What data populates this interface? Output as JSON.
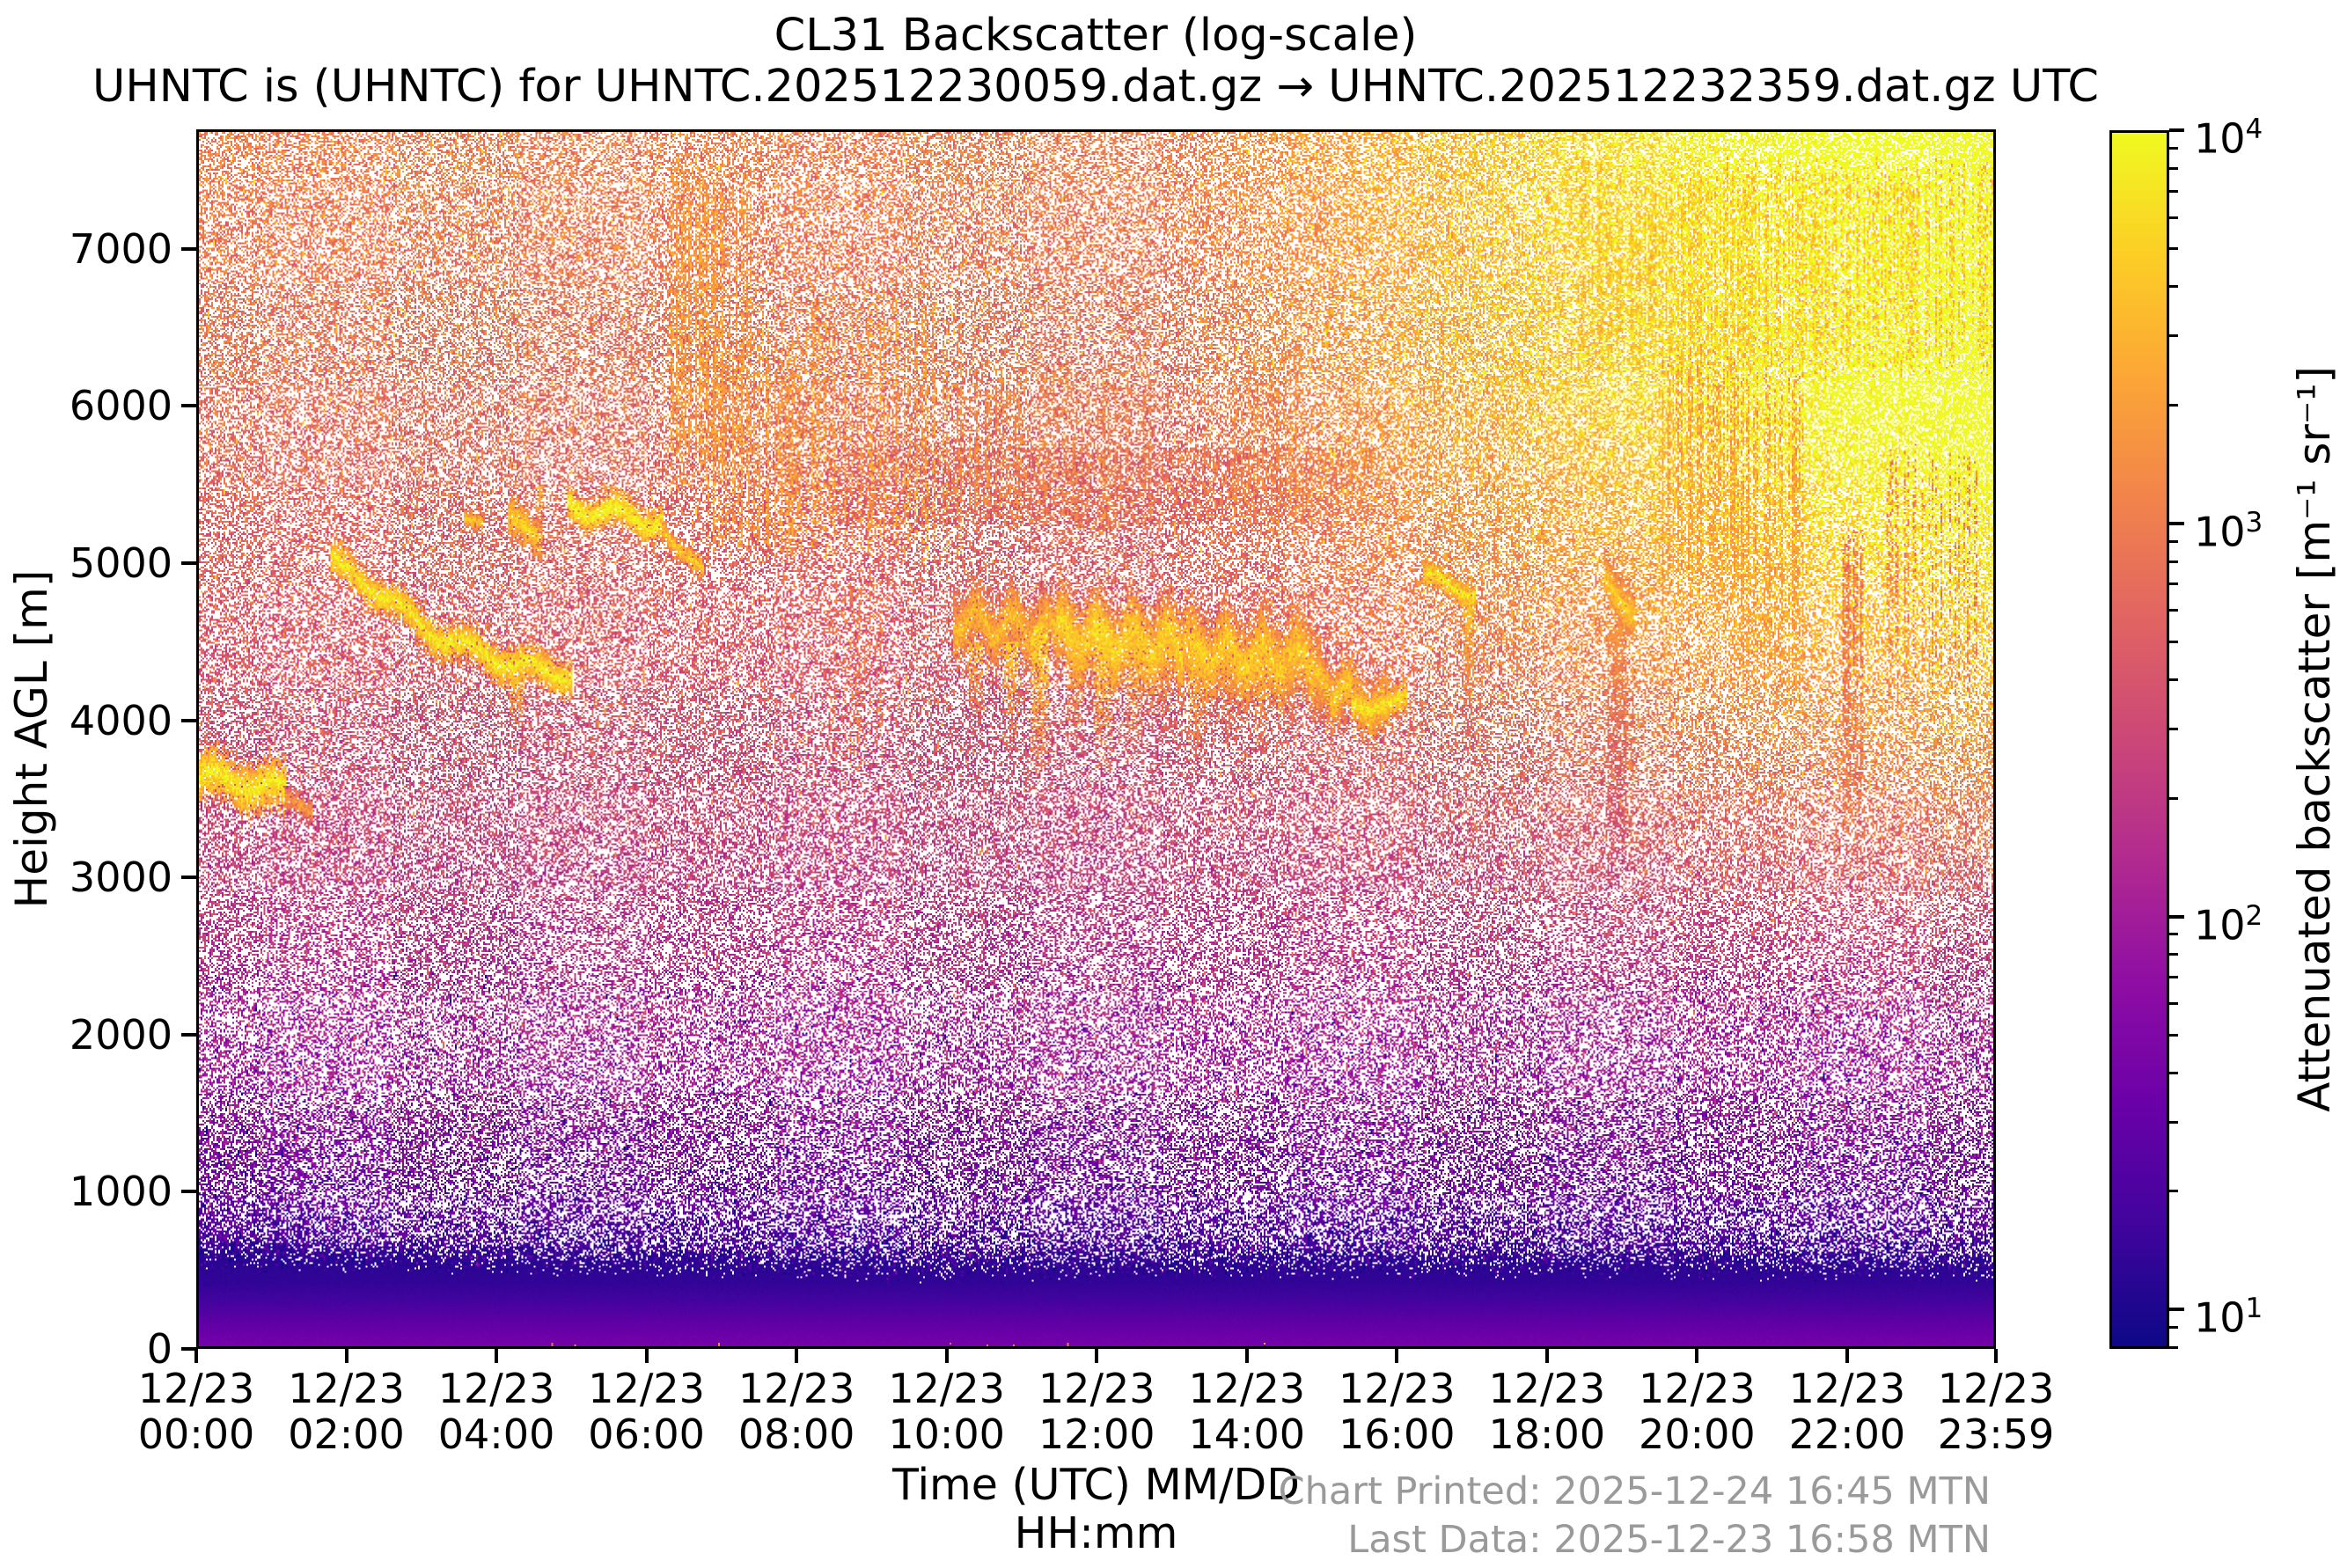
{
  "title": "CL31 Backscatter (log-scale)",
  "subtitle": "UHNTC is (UHNTC) for UHNTC.202512230059.dat.gz → UHNTC.202512232359.dat.gz UTC",
  "footer": {
    "printed": "Chart Printed: 2025-12-24 16:45 MTN",
    "last_data": "Last Data: 2025-12-23 16:58 MTN"
  },
  "axes": {
    "x": {
      "label_line1": "Time (UTC) MM/DD",
      "label_line2": "HH:mm",
      "max_hour": 23.9833,
      "ticks": [
        {
          "date": "12/23",
          "time": "00:00",
          "hour": 0
        },
        {
          "date": "12/23",
          "time": "02:00",
          "hour": 2
        },
        {
          "date": "12/23",
          "time": "04:00",
          "hour": 4
        },
        {
          "date": "12/23",
          "time": "06:00",
          "hour": 6
        },
        {
          "date": "12/23",
          "time": "08:00",
          "hour": 8
        },
        {
          "date": "12/23",
          "time": "10:00",
          "hour": 10
        },
        {
          "date": "12/23",
          "time": "12:00",
          "hour": 12
        },
        {
          "date": "12/23",
          "time": "14:00",
          "hour": 14
        },
        {
          "date": "12/23",
          "time": "16:00",
          "hour": 16
        },
        {
          "date": "12/23",
          "time": "18:00",
          "hour": 18
        },
        {
          "date": "12/23",
          "time": "20:00",
          "hour": 20
        },
        {
          "date": "12/23",
          "time": "22:00",
          "hour": 22
        },
        {
          "date": "12/23",
          "time": "23:59",
          "hour": 23.9833
        }
      ]
    },
    "y": {
      "label": "Height AGL [m]",
      "max": 7760,
      "ticks": [
        0,
        1000,
        2000,
        3000,
        4000,
        5000,
        6000,
        7000
      ]
    }
  },
  "colorbar": {
    "label": "Attenuated backscatter [m⁻¹ sr⁻¹]",
    "log_min": 0.9,
    "log_max": 4,
    "ticks": [
      {
        "label": "10",
        "exp": "4",
        "log": 4
      },
      {
        "label": "10",
        "exp": "3",
        "log": 3
      },
      {
        "label": "10",
        "exp": "2",
        "log": 2
      },
      {
        "label": "10",
        "exp": "1",
        "log": 1
      }
    ],
    "colormap": {
      "name": "plasma",
      "stops": [
        [
          0,
          "#0d0887"
        ],
        [
          0.1,
          "#41049d"
        ],
        [
          0.2,
          "#6a00a8"
        ],
        [
          0.3,
          "#8f0da4"
        ],
        [
          0.4,
          "#b12a90"
        ],
        [
          0.5,
          "#cc4778"
        ],
        [
          0.6,
          "#e16462"
        ],
        [
          0.7,
          "#f2844b"
        ],
        [
          0.8,
          "#fca636"
        ],
        [
          0.9,
          "#fcce25"
        ],
        [
          1,
          "#f0f921"
        ]
      ]
    }
  },
  "chart_data": {
    "type": "heatmap",
    "title": "CL31 Backscatter (log-scale)",
    "xlabel": "Time (UTC) MM/DD HH:mm",
    "ylabel": "Height AGL [m]",
    "zlabel": "Attenuated backscatter [m⁻¹ sr⁻¹]",
    "x_range_hours": [
      0,
      23.9833
    ],
    "x_dates": "12/23",
    "y": {
      "range_m": [
        0,
        7760
      ]
    },
    "z_scale": "log10, 10^0.9 to 10^4",
    "colormap": "plasma",
    "surface_layer": {
      "top_start": 450,
      "top_end": 395,
      "wiggle": 20,
      "blend": 220,
      "profile": [
        [
          0,
          0.225
        ],
        [
          60,
          0.21
        ],
        [
          170,
          0.165
        ],
        [
          280,
          0.11
        ],
        [
          400,
          0.072
        ],
        [
          560,
          0.055
        ]
      ]
    },
    "noise_field": {
      "density_base": 0.5,
      "base_curve": [
        [
          450,
          0.07
        ],
        [
          700,
          0.13
        ],
        [
          1000,
          0.22
        ],
        [
          1600,
          0.33
        ],
        [
          2400,
          0.4
        ],
        [
          3200,
          0.48
        ],
        [
          4200,
          0.55
        ],
        [
          5200,
          0.6
        ],
        [
          6200,
          0.64
        ],
        [
          7600,
          0.68
        ]
      ],
      "jitter": 0.22,
      "warm_tail_p": 0.1,
      "warm_tail": 0.2,
      "cold_tail_p": 0.035,
      "cold_tail": 0.28,
      "run_p": 0.42,
      "low_dense_extra": 0.3,
      "low_dense_range": 420,
      "mid_thin": {
        "h": [
          1500,
          2900
        ],
        "dd": -0.05
      },
      "time_boost": {
        "t0": 0.54,
        "tspan": 0.45,
        "h0": 2000,
        "dh": 2500,
        "hmax": 1.6,
        "amount": 0.3,
        "dens_amount": 0.22,
        "dens_h0": 4200,
        "dens_dh": 1600
      },
      "dense_patches": [
        {
          "t": [
            0.35,
            0.66
          ],
          "h": [
            5250,
            5750
          ],
          "dd": 0.16
        },
        {
          "t": [
            0.0,
            0.06
          ],
          "h": [
            600,
            1400
          ],
          "dd": 0.1
        }
      ]
    },
    "cloud_bands": [
      {
        "t": [
          0.0,
          0.048
        ],
        "h": [
          3640,
          3520
        ],
        "th": 380,
        "bright": 0.97,
        "wave": 90
      },
      {
        "t": [
          0.048,
          0.063
        ],
        "h": [
          3500,
          3450
        ],
        "th": 180,
        "bright": 0.8,
        "wave": 40
      },
      {
        "t": [
          0.073,
          0.128
        ],
        "h": [
          5050,
          4560
        ],
        "th": 270,
        "bright": 0.96,
        "wave": 60
      },
      {
        "t": [
          0.128,
          0.207
        ],
        "h": [
          4560,
          4290
        ],
        "th": 280,
        "bright": 0.97,
        "wave": 70
      },
      {
        "t": [
          0.148,
          0.157
        ],
        "h": [
          5280,
          5280
        ],
        "th": 150,
        "bright": 0.88,
        "wave": 30
      },
      {
        "t": [
          0.172,
          0.191
        ],
        "h": [
          5300,
          5150
        ],
        "th": 300,
        "bright": 0.92,
        "wave": 40
      },
      {
        "t": [
          0.205,
          0.258
        ],
        "h": [
          5360,
          5320
        ],
        "th": 250,
        "bright": 0.99,
        "wave": 90
      },
      {
        "t": [
          0.258,
          0.281
        ],
        "h": [
          5230,
          4950
        ],
        "th": 180,
        "bright": 0.9,
        "wave": 50
      },
      {
        "t": [
          0.42,
          0.478
        ],
        "h": [
          4650,
          4580
        ],
        "th": 500,
        "bright": 0.86,
        "ragged": 160
      },
      {
        "t": [
          0.478,
          0.548
        ],
        "h": [
          4560,
          4480
        ],
        "th": 620,
        "bright": 0.92,
        "ragged": 170
      },
      {
        "t": [
          0.548,
          0.625
        ],
        "h": [
          4460,
          4380
        ],
        "th": 620,
        "bright": 0.9,
        "ragged": 170
      },
      {
        "t": [
          0.625,
          0.662
        ],
        "h": [
          4250,
          4060
        ],
        "th": 460,
        "bright": 0.9,
        "ragged": 150
      },
      {
        "t": [
          0.642,
          0.673
        ],
        "h": [
          4110,
          4150
        ],
        "th": 240,
        "bright": 0.96,
        "wave": 50
      },
      {
        "t": [
          0.682,
          0.711
        ],
        "h": [
          4900,
          4800
        ],
        "th": 200,
        "bright": 0.95,
        "wave": 70
      },
      {
        "t": [
          0.783,
          0.8
        ],
        "h": [
          4930,
          4680
        ],
        "th": 380,
        "bright": 0.9,
        "wave": 40
      }
    ],
    "plumes": [
      {
        "t": 0.177,
        "w": 0.0035,
        "h": [
          4290,
          3940
        ],
        "bright": 0.9
      },
      {
        "t": 0.19,
        "w": 0.002,
        "h": [
          5500,
          5060
        ],
        "bright": 0.85
      },
      {
        "t": 0.432,
        "w": 0.004,
        "h": [
          4500,
          3900
        ],
        "bright": 0.85
      },
      {
        "t": 0.452,
        "w": 0.004,
        "h": [
          4500,
          3800
        ],
        "bright": 0.9
      },
      {
        "t": 0.468,
        "w": 0.005,
        "h": [
          4600,
          3660
        ],
        "bright": 0.95
      },
      {
        "t": 0.488,
        "w": 0.004,
        "h": [
          4550,
          3800
        ],
        "bright": 0.88
      },
      {
        "t": 0.503,
        "w": 0.005,
        "h": [
          4600,
          3680
        ],
        "bright": 0.95
      },
      {
        "t": 0.521,
        "w": 0.004,
        "h": [
          4500,
          3800
        ],
        "bright": 0.9
      },
      {
        "t": 0.538,
        "w": 0.004,
        "h": [
          4450,
          3900
        ],
        "bright": 0.85
      },
      {
        "t": 0.556,
        "w": 0.005,
        "h": [
          4500,
          3750
        ],
        "bright": 0.92
      },
      {
        "t": 0.574,
        "w": 0.004,
        "h": [
          4450,
          3850
        ],
        "bright": 0.88
      },
      {
        "t": 0.591,
        "w": 0.004,
        "h": [
          4400,
          3800
        ],
        "bright": 0.9
      },
      {
        "t": 0.608,
        "w": 0.004,
        "h": [
          4400,
          3900
        ],
        "bright": 0.85
      },
      {
        "t": 0.626,
        "w": 0.004,
        "h": [
          4300,
          3950
        ],
        "bright": 0.85
      },
      {
        "t": 0.707,
        "w": 0.003,
        "h": [
          4750,
          3900
        ],
        "bright": 0.88
      },
      {
        "t": 0.79,
        "w": 0.005,
        "h": [
          4600,
          3100
        ],
        "bright": 0.75
      }
    ],
    "streak_regions": [
      {
        "t": [
          0.262,
          0.308
        ],
        "h": [
          5450,
          7600
        ],
        "c": [
          0.68,
          0.86
        ],
        "density": 0.42,
        "col_p": 0.6
      },
      {
        "t": [
          0.283,
          0.336
        ],
        "h": [
          5000,
          6500
        ],
        "c": [
          0.68,
          0.86
        ],
        "density": 0.38,
        "col_p": 0.55
      },
      {
        "t": [
          0.336,
          0.425
        ],
        "h": [
          5000,
          6800
        ],
        "c": [
          0.68,
          0.87
        ],
        "density": 0.32,
        "col_p": 0.45
      },
      {
        "t": [
          0.35,
          0.387
        ],
        "h": [
          3700,
          5000
        ],
        "c": [
          0.6,
          0.76
        ],
        "density": 0.2,
        "col_p": 0.35
      },
      {
        "t": [
          0.42,
          0.53
        ],
        "h": [
          5200,
          6300
        ],
        "c": [
          0.64,
          0.8
        ],
        "density": 0.28,
        "col_p": 0.5
      },
      {
        "t": [
          0.56,
          0.615
        ],
        "h": [
          5200,
          6400
        ],
        "c": [
          0.64,
          0.8
        ],
        "density": 0.24,
        "col_p": 0.4
      },
      {
        "t": [
          0.718,
          0.737
        ],
        "h": [
          4300,
          5600
        ],
        "c": [
          0.64,
          0.8
        ],
        "density": 0.24,
        "col_p": 0.45
      },
      {
        "t": [
          0.783,
          0.8
        ],
        "h": [
          3100,
          4400
        ],
        "c": [
          0.58,
          0.74
        ],
        "density": 0.2,
        "col_p": 0.5
      },
      {
        "t": [
          0.815,
          0.857
        ],
        "h": [
          4700,
          6400
        ],
        "c": [
          0.7,
          0.86
        ],
        "density": 0.36,
        "col_p": 0.55
      },
      {
        "t": [
          0.852,
          0.893
        ],
        "h": [
          4100,
          6300
        ],
        "c": [
          0.7,
          0.86
        ],
        "density": 0.38,
        "col_p": 0.5
      },
      {
        "t": [
          0.916,
          0.928
        ],
        "h": [
          3300,
          5300
        ],
        "c": [
          0.58,
          0.76
        ],
        "density": 0.5,
        "col_p": 0.85
      },
      {
        "t": [
          0.94,
          0.995
        ],
        "h": [
          4100,
          5800
        ],
        "c": [
          0.6,
          0.8
        ],
        "density": 0.26,
        "col_p": 0.45
      },
      {
        "t": [
          0.77,
          1.0
        ],
        "h": [
          6200,
          7600
        ],
        "c": [
          0.78,
          0.96
        ],
        "density": 0.3,
        "col_p": 0.65
      },
      {
        "t": [
          0.18,
          0.78
        ],
        "h": [
          0,
          25
        ],
        "c": [
          0.62,
          0.78
        ],
        "density": 0.12,
        "col_p": 0.25
      }
    ]
  }
}
